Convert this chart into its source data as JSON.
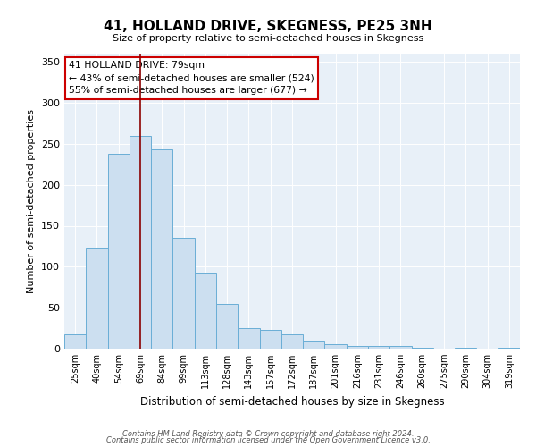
{
  "title": "41, HOLLAND DRIVE, SKEGNESS, PE25 3NH",
  "subtitle": "Size of property relative to semi-detached houses in Skegness",
  "xlabel": "Distribution of semi-detached houses by size in Skegness",
  "ylabel": "Number of semi-detached properties",
  "bar_color": "#ccdff0",
  "bar_edge_color": "#6aaed6",
  "background_color": "#e8f0f8",
  "bin_labels": [
    "25sqm",
    "40sqm",
    "54sqm",
    "69sqm",
    "84sqm",
    "99sqm",
    "113sqm",
    "128sqm",
    "143sqm",
    "157sqm",
    "172sqm",
    "187sqm",
    "201sqm",
    "216sqm",
    "231sqm",
    "246sqm",
    "260sqm",
    "275sqm",
    "290sqm",
    "304sqm",
    "319sqm"
  ],
  "counts": [
    17,
    123,
    238,
    260,
    243,
    135,
    93,
    55,
    25,
    23,
    17,
    10,
    5,
    3,
    3,
    3,
    1,
    0,
    1,
    0,
    1
  ],
  "n_bins": 21,
  "vline_bin": 3.5,
  "annotation_title": "41 HOLLAND DRIVE: 79sqm",
  "annotation_line1": "← 43% of semi-detached houses are smaller (524)",
  "annotation_line2": "55% of semi-detached houses are larger (677) →",
  "ylim": [
    0,
    360
  ],
  "yticks": [
    0,
    50,
    100,
    150,
    200,
    250,
    300,
    350
  ],
  "footer_line1": "Contains HM Land Registry data © Crown copyright and database right 2024.",
  "footer_line2": "Contains public sector information licensed under the Open Government Licence v3.0."
}
